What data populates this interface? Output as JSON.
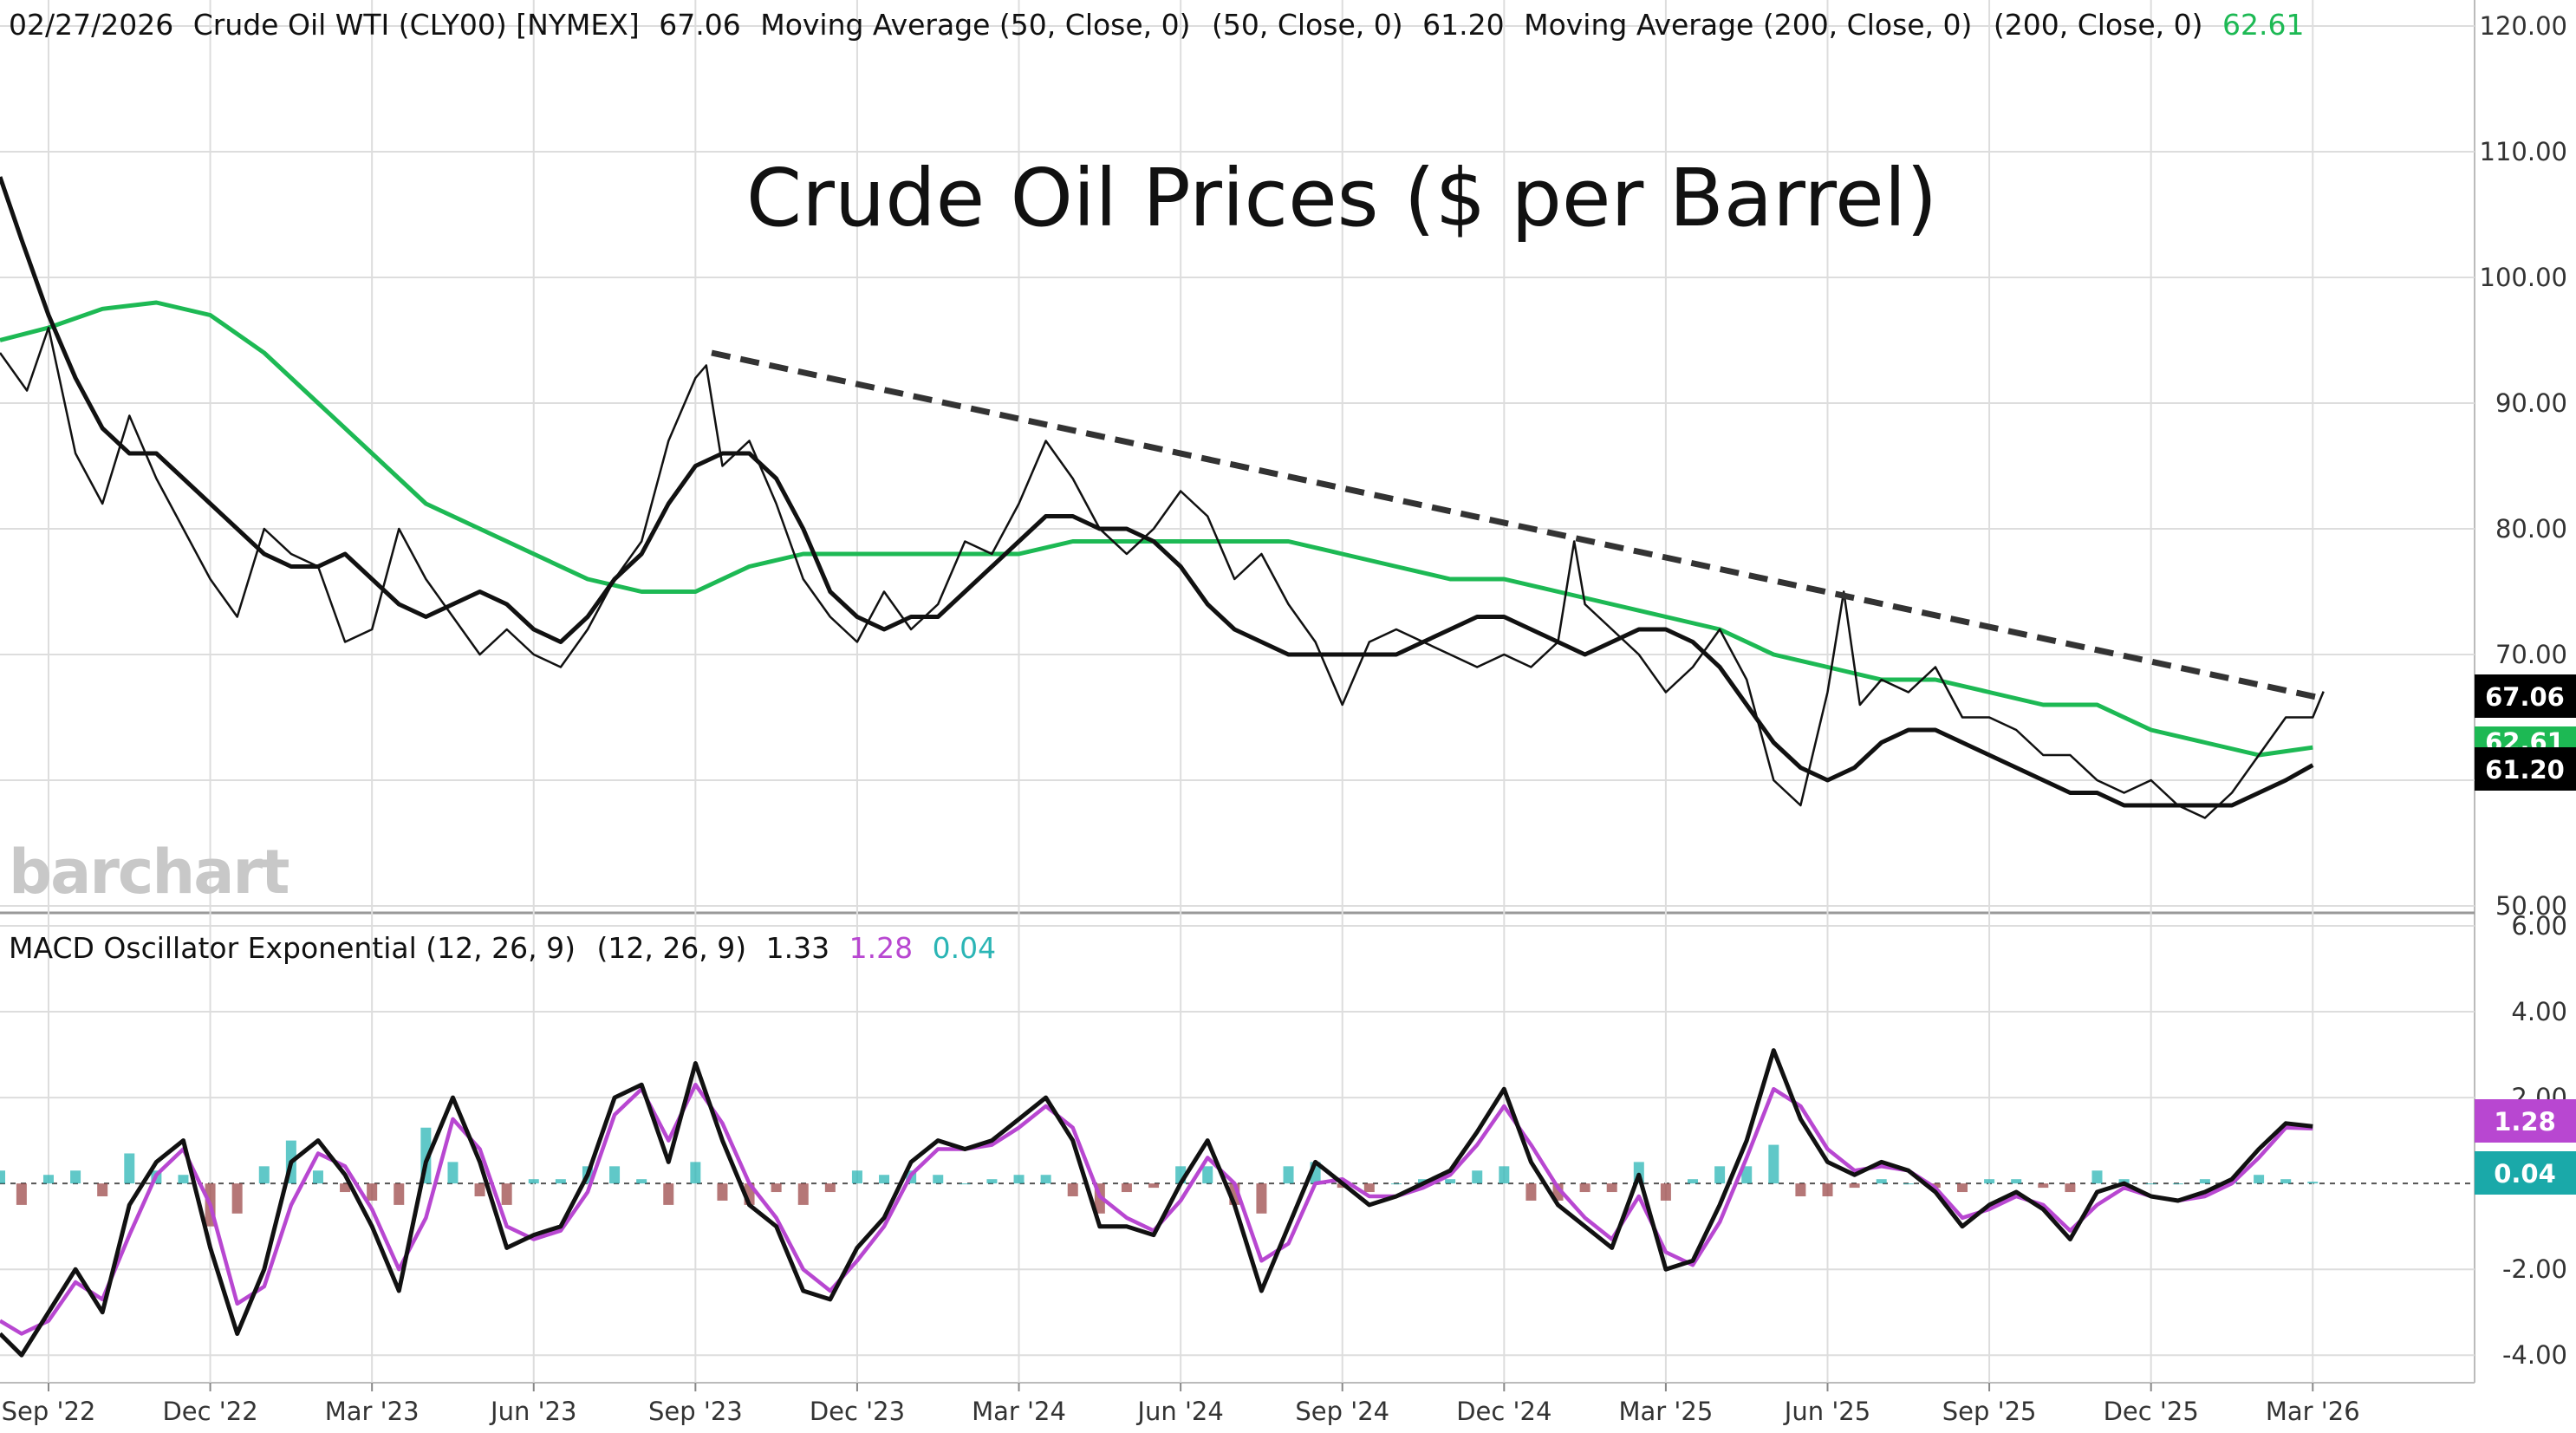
{
  "header": {
    "date": "02/27/2026",
    "instrument": "Crude Oil WTI (CLY00) [NYMEX]",
    "last": "67.06",
    "ma50_label": "Moving Average (50, Close, 0)",
    "ma50_params": "(50, Close, 0)",
    "ma50_value": "61.20",
    "ma200_label": "Moving Average (200, Close, 0)",
    "ma200_params": "(200, Close, 0)",
    "ma200_value": "62.61"
  },
  "macd_header": {
    "label": "MACD Oscillator Exponential (12, 26, 9)",
    "params": "(12, 26, 9)",
    "macd": "1.33",
    "signal": "1.28",
    "hist": "0.04"
  },
  "badges": {
    "price": "67.06",
    "ma200": "62.61",
    "ma50": "61.20",
    "signal": "1.28",
    "hist": "0.04"
  },
  "watermark": "barchart",
  "colors": {
    "price": "#111111",
    "ma50": "#111111",
    "ma200": "#1db954",
    "trendline": "#333333",
    "macd": "#111111",
    "signal": "#b847d1",
    "hist_pos": "#2bb5b5",
    "hist_neg": "#9c4a4a",
    "grid": "#dddddd"
  },
  "chart_data": [
    {
      "type": "line",
      "title": "Crude Oil Prices ($ per Barrel)",
      "ylim": [
        50,
        120
      ],
      "yticks": [
        "120.00",
        "110.00",
        "100.00",
        "90.00",
        "80.00",
        "70.00",
        "60.00",
        "50.00"
      ],
      "x_tick_labels": [
        "Sep '22",
        "Dec '22",
        "Mar '23",
        "Jun '23",
        "Sep '23",
        "Dec '23",
        "Mar '24",
        "Jun '24",
        "Sep '24",
        "Dec '24",
        "Mar '25",
        "Jun '25",
        "Sep '25",
        "Dec '25",
        "Mar '26"
      ],
      "x_tick_months": [
        2,
        5,
        8,
        11,
        14,
        17,
        20,
        23,
        26,
        29,
        32,
        35,
        38,
        41,
        44
      ],
      "x_range_months": [
        1.1,
        46.6
      ],
      "series": [
        {
          "name": "Crude Oil WTI (CLY00)",
          "x_months": [
            1.1,
            1.6,
            2.0,
            2.5,
            3.0,
            3.5,
            4.0,
            4.5,
            5.0,
            5.5,
            6.0,
            6.5,
            7.0,
            7.5,
            8.0,
            8.5,
            9.0,
            9.5,
            10.0,
            10.5,
            11.0,
            11.5,
            12.0,
            12.5,
            13.0,
            13.5,
            14.0,
            14.2,
            14.5,
            15.0,
            15.5,
            16.0,
            16.5,
            17.0,
            17.5,
            18.0,
            18.5,
            19.0,
            19.5,
            20.0,
            20.5,
            21.0,
            21.5,
            22.0,
            22.5,
            23.0,
            23.5,
            24.0,
            24.5,
            25.0,
            25.5,
            26.0,
            26.5,
            27.0,
            27.5,
            28.0,
            28.5,
            29.0,
            29.5,
            30.0,
            30.3,
            30.5,
            31.0,
            31.5,
            32.0,
            32.5,
            33.0,
            33.5,
            34.0,
            34.5,
            35.0,
            35.3,
            35.6,
            36.0,
            36.5,
            37.0,
            37.5,
            38.0,
            38.5,
            39.0,
            39.5,
            40.0,
            40.5,
            41.0,
            41.5,
            42.0,
            42.5,
            43.0,
            43.5,
            44.0,
            44.2
          ],
          "values": [
            94,
            91,
            96,
            86,
            82,
            89,
            84,
            80,
            76,
            73,
            80,
            78,
            77,
            71,
            72,
            80,
            76,
            73,
            70,
            72,
            70,
            69,
            72,
            76,
            79,
            87,
            92,
            93,
            85,
            87,
            82,
            76,
            73,
            71,
            75,
            72,
            74,
            79,
            78,
            82,
            87,
            84,
            80,
            78,
            80,
            83,
            81,
            76,
            78,
            74,
            71,
            66,
            71,
            72,
            71,
            70,
            69,
            70,
            69,
            71,
            79,
            74,
            72,
            70,
            67,
            69,
            72,
            68,
            60,
            58,
            67,
            75,
            66,
            68,
            67,
            69,
            65,
            65,
            64,
            62,
            62,
            60,
            59,
            60,
            58,
            57,
            59,
            62,
            65,
            65,
            67.06
          ]
        },
        {
          "name": "Moving Average (50, Close, 0)",
          "x_months": [
            1.1,
            1.5,
            2.0,
            2.5,
            3.0,
            3.5,
            4.0,
            4.5,
            5.0,
            5.5,
            6.0,
            6.5,
            7.0,
            7.5,
            8.0,
            8.5,
            9.0,
            9.5,
            10.0,
            10.5,
            11.0,
            11.5,
            12.0,
            12.5,
            13.0,
            13.5,
            14.0,
            14.5,
            15.0,
            15.5,
            16.0,
            16.5,
            17.0,
            17.5,
            18.0,
            18.5,
            19.0,
            19.5,
            20.0,
            20.5,
            21.0,
            21.5,
            22.0,
            22.5,
            23.0,
            23.5,
            24.0,
            24.5,
            25.0,
            25.5,
            26.0,
            26.5,
            27.0,
            27.5,
            28.0,
            28.5,
            29.0,
            29.5,
            30.0,
            30.5,
            31.0,
            31.5,
            32.0,
            32.5,
            33.0,
            33.5,
            34.0,
            34.5,
            35.0,
            35.5,
            36.0,
            36.5,
            37.0,
            37.5,
            38.0,
            38.5,
            39.0,
            39.5,
            40.0,
            40.5,
            41.0,
            41.5,
            42.0,
            42.5,
            43.0,
            43.5,
            44.0
          ],
          "values": [
            108,
            103,
            97,
            92,
            88,
            86,
            86,
            84,
            82,
            80,
            78,
            77,
            77,
            78,
            76,
            74,
            73,
            74,
            75,
            74,
            72,
            71,
            73,
            76,
            78,
            82,
            85,
            86,
            86,
            84,
            80,
            75,
            73,
            72,
            73,
            73,
            75,
            77,
            79,
            81,
            81,
            80,
            80,
            79,
            77,
            74,
            72,
            71,
            70,
            70,
            70,
            70,
            70,
            71,
            72,
            73,
            73,
            72,
            71,
            70,
            71,
            72,
            72,
            71,
            69,
            66,
            63,
            61,
            60,
            61,
            63,
            64,
            64,
            63,
            62,
            61,
            60,
            59,
            59,
            58,
            58,
            58,
            58,
            58,
            59,
            60,
            61.2
          ]
        },
        {
          "name": "Moving Average (200, Close, 0)",
          "x_months": [
            1.1,
            2.0,
            3.0,
            4.0,
            5.0,
            6.0,
            7.0,
            8.0,
            9.0,
            10.0,
            11.0,
            12.0,
            13.0,
            14.0,
            15.0,
            16.0,
            17.0,
            18.0,
            19.0,
            20.0,
            21.0,
            22.0,
            23.0,
            24.0,
            25.0,
            26.0,
            27.0,
            28.0,
            29.0,
            30.0,
            31.0,
            32.0,
            33.0,
            34.0,
            35.0,
            36.0,
            37.0,
            38.0,
            39.0,
            40.0,
            41.0,
            42.0,
            43.0,
            44.0
          ],
          "values": [
            95,
            96,
            97.5,
            98,
            97,
            94,
            90,
            86,
            82,
            80,
            78,
            76,
            75,
            75,
            77,
            78,
            78,
            78,
            78,
            78,
            79,
            79,
            79,
            79,
            79,
            78,
            77,
            76,
            76,
            75,
            74,
            73,
            72,
            70,
            69,
            68,
            68,
            67,
            66,
            66,
            64,
            63,
            62,
            62.61
          ]
        },
        {
          "name": "Downtrend line",
          "style": "dashed",
          "x_months": [
            14.3,
            44.2
          ],
          "values": [
            94,
            66.5
          ]
        }
      ]
    },
    {
      "type": "line",
      "title": "MACD Oscillator Exponential (12, 26, 9)",
      "ylim": [
        -4.5,
        6.0
      ],
      "yticks": [
        "6.00",
        "4.00",
        "2.00",
        "-2.00",
        "-4.00"
      ],
      "series": [
        {
          "name": "MACD",
          "x_months": [
            1.1,
            1.5,
            2.0,
            2.5,
            3.0,
            3.5,
            4.0,
            4.5,
            5.0,
            5.5,
            6.0,
            6.5,
            7.0,
            7.5,
            8.0,
            8.5,
            9.0,
            9.5,
            10.0,
            10.5,
            11.0,
            11.5,
            12.0,
            12.5,
            13.0,
            13.5,
            14.0,
            14.5,
            15.0,
            15.5,
            16.0,
            16.5,
            17.0,
            17.5,
            18.0,
            18.5,
            19.0,
            19.5,
            20.0,
            20.5,
            21.0,
            21.5,
            22.0,
            22.5,
            23.0,
            23.5,
            24.0,
            24.5,
            25.0,
            25.5,
            26.0,
            26.5,
            27.0,
            27.5,
            28.0,
            28.5,
            29.0,
            29.5,
            30.0,
            30.5,
            31.0,
            31.5,
            32.0,
            32.5,
            33.0,
            33.5,
            34.0,
            34.5,
            35.0,
            35.5,
            36.0,
            36.5,
            37.0,
            37.5,
            38.0,
            38.5,
            39.0,
            39.5,
            40.0,
            40.5,
            41.0,
            41.5,
            42.0,
            42.5,
            43.0,
            43.5,
            44.0
          ],
          "values": [
            -3.5,
            -4.0,
            -3.0,
            -2.0,
            -3.0,
            -0.5,
            0.5,
            1.0,
            -1.5,
            -3.5,
            -2.0,
            0.5,
            1.0,
            0.2,
            -1.0,
            -2.5,
            0.5,
            2.0,
            0.5,
            -1.5,
            -1.2,
            -1.0,
            0.2,
            2.0,
            2.3,
            0.5,
            2.8,
            1.0,
            -0.5,
            -1.0,
            -2.5,
            -2.7,
            -1.5,
            -0.8,
            0.5,
            1.0,
            0.8,
            1.0,
            1.5,
            2.0,
            1.0,
            -1.0,
            -1.0,
            -1.2,
            0.0,
            1.0,
            -0.5,
            -2.5,
            -1.0,
            0.5,
            0.0,
            -0.5,
            -0.3,
            0.0,
            0.3,
            1.2,
            2.2,
            0.5,
            -0.5,
            -1.0,
            -1.5,
            0.2,
            -2.0,
            -1.8,
            -0.5,
            1.0,
            3.1,
            1.5,
            0.5,
            0.2,
            0.5,
            0.3,
            -0.2,
            -1.0,
            -0.5,
            -0.2,
            -0.6,
            -1.3,
            -0.2,
            0.0,
            -0.3,
            -0.4,
            -0.2,
            0.1,
            0.8,
            1.4,
            1.33
          ]
        },
        {
          "name": "Signal",
          "x_months": [
            1.1,
            1.5,
            2.0,
            2.5,
            3.0,
            3.5,
            4.0,
            4.5,
            5.0,
            5.5,
            6.0,
            6.5,
            7.0,
            7.5,
            8.0,
            8.5,
            9.0,
            9.5,
            10.0,
            10.5,
            11.0,
            11.5,
            12.0,
            12.5,
            13.0,
            13.5,
            14.0,
            14.5,
            15.0,
            15.5,
            16.0,
            16.5,
            17.0,
            17.5,
            18.0,
            18.5,
            19.0,
            19.5,
            20.0,
            20.5,
            21.0,
            21.5,
            22.0,
            22.5,
            23.0,
            23.5,
            24.0,
            24.5,
            25.0,
            25.5,
            26.0,
            26.5,
            27.0,
            27.5,
            28.0,
            28.5,
            29.0,
            29.5,
            30.0,
            30.5,
            31.0,
            31.5,
            32.0,
            32.5,
            33.0,
            33.5,
            34.0,
            34.5,
            35.0,
            35.5,
            36.0,
            36.5,
            37.0,
            37.5,
            38.0,
            38.5,
            39.0,
            39.5,
            40.0,
            40.5,
            41.0,
            41.5,
            42.0,
            42.5,
            43.0,
            43.5,
            44.0
          ],
          "values": [
            -3.2,
            -3.5,
            -3.2,
            -2.3,
            -2.7,
            -1.2,
            0.2,
            0.8,
            -0.5,
            -2.8,
            -2.4,
            -0.5,
            0.7,
            0.4,
            -0.6,
            -2.0,
            -0.8,
            1.5,
            0.8,
            -1.0,
            -1.3,
            -1.1,
            -0.2,
            1.6,
            2.2,
            1.0,
            2.3,
            1.4,
            0.0,
            -0.8,
            -2.0,
            -2.5,
            -1.8,
            -1.0,
            0.2,
            0.8,
            0.8,
            0.9,
            1.3,
            1.8,
            1.3,
            -0.3,
            -0.8,
            -1.1,
            -0.4,
            0.6,
            0.0,
            -1.8,
            -1.4,
            0.0,
            0.1,
            -0.3,
            -0.3,
            -0.1,
            0.2,
            0.9,
            1.8,
            0.9,
            -0.1,
            -0.8,
            -1.3,
            -0.3,
            -1.6,
            -1.9,
            -0.9,
            0.6,
            2.2,
            1.8,
            0.8,
            0.3,
            0.4,
            0.3,
            -0.1,
            -0.8,
            -0.6,
            -0.3,
            -0.5,
            -1.1,
            -0.5,
            -0.1,
            -0.3,
            -0.4,
            -0.3,
            0.0,
            0.6,
            1.3,
            1.28
          ]
        },
        {
          "name": "Histogram",
          "type": "bar",
          "x_months": [
            1.1,
            1.5,
            2.0,
            2.5,
            3.0,
            3.5,
            4.0,
            4.5,
            5.0,
            5.5,
            6.0,
            6.5,
            7.0,
            7.5,
            8.0,
            8.5,
            9.0,
            9.5,
            10.0,
            10.5,
            11.0,
            11.5,
            12.0,
            12.5,
            13.0,
            13.5,
            14.0,
            14.5,
            15.0,
            15.5,
            16.0,
            16.5,
            17.0,
            17.5,
            18.0,
            18.5,
            19.0,
            19.5,
            20.0,
            20.5,
            21.0,
            21.5,
            22.0,
            22.5,
            23.0,
            23.5,
            24.0,
            24.5,
            25.0,
            25.5,
            26.0,
            26.5,
            27.0,
            27.5,
            28.0,
            28.5,
            29.0,
            29.5,
            30.0,
            30.5,
            31.0,
            31.5,
            32.0,
            32.5,
            33.0,
            33.5,
            34.0,
            34.5,
            35.0,
            35.5,
            36.0,
            36.5,
            37.0,
            37.5,
            38.0,
            38.5,
            39.0,
            39.5,
            40.0,
            40.5,
            41.0,
            41.5,
            42.0,
            42.5,
            43.0,
            43.5,
            44.0
          ],
          "values": [
            0.3,
            -0.5,
            0.2,
            0.3,
            -0.3,
            0.7,
            0.3,
            0.2,
            -1.0,
            -0.7,
            0.4,
            1.0,
            0.3,
            -0.2,
            -0.4,
            -0.5,
            1.3,
            0.5,
            -0.3,
            -0.5,
            0.1,
            0.1,
            0.4,
            0.4,
            0.1,
            -0.5,
            0.5,
            -0.4,
            -0.5,
            -0.2,
            -0.5,
            -0.2,
            0.3,
            0.2,
            0.3,
            0.2,
            0.0,
            0.1,
            0.2,
            0.2,
            -0.3,
            -0.7,
            -0.2,
            -0.1,
            0.4,
            0.4,
            -0.5,
            -0.7,
            0.4,
            0.5,
            -0.1,
            -0.2,
            0.0,
            0.1,
            0.1,
            0.3,
            0.4,
            -0.4,
            -0.4,
            -0.2,
            -0.2,
            0.5,
            -0.4,
            0.1,
            0.4,
            0.4,
            0.9,
            -0.3,
            -0.3,
            -0.1,
            0.1,
            0.0,
            -0.1,
            -0.2,
            0.1,
            0.1,
            -0.1,
            -0.2,
            0.3,
            0.1,
            0.0,
            0.0,
            0.1,
            0.1,
            0.2,
            0.1,
            0.04
          ]
        }
      ]
    }
  ]
}
